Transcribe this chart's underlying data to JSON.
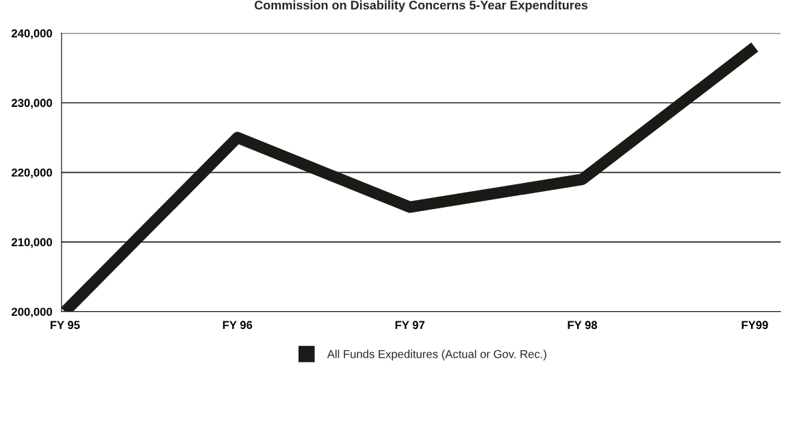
{
  "chart_data": {
    "type": "line",
    "title": "Commission on Disability Concerns 5-Year Expenditures",
    "categories": [
      "FY 95",
      "FY 96",
      "FY 97",
      "FY 98",
      "FY99"
    ],
    "series": [
      {
        "name": "All Funds Expeditures (Actual or Gov. Rec.)",
        "color": "#1a1a16",
        "values": [
          200000,
          225000,
          215000,
          219000,
          238000
        ]
      }
    ],
    "ylim": [
      200000,
      240000
    ],
    "yticks": [
      {
        "value": 200000,
        "label": "200,000"
      },
      {
        "value": 210000,
        "label": "210,000"
      },
      {
        "value": 220000,
        "label": "220,000"
      },
      {
        "value": 230000,
        "label": "230,000"
      },
      {
        "value": 240000,
        "label": "240,000"
      }
    ],
    "grid": "y",
    "legend": "bottom",
    "marker": "none",
    "line_style": "solid"
  }
}
